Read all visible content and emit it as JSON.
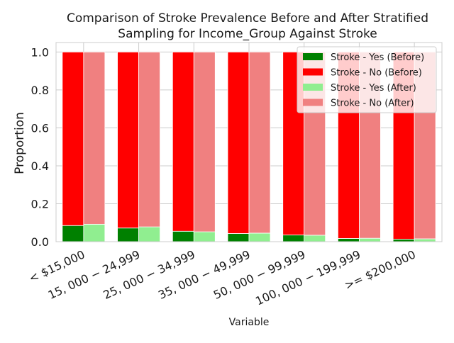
{
  "chart_data": {
    "type": "bar",
    "stacked": true,
    "title_line1": "Comparison of Stroke Prevalence Before and After Stratified",
    "title_line2": "Sampling for Income_Group Against Stroke",
    "xlabel": "Variable",
    "ylabel": "Proportion",
    "ylim": [
      0,
      1.05
    ],
    "yticks": [
      "0.0",
      "0.2",
      "0.4",
      "0.6",
      "0.8",
      "1.0"
    ],
    "ytick_values": [
      0,
      0.2,
      0.4,
      0.6,
      0.8,
      1.0
    ],
    "grid": true,
    "legend_position": "top-right",
    "categories": [
      "< $15,000",
      "15, 000 − 24,999",
      "25, 000 − 34,999",
      "35, 000 − 49,999",
      "50, 000 − 99,999",
      "100, 000 − 199,999",
      ">= $200,000"
    ],
    "series": [
      {
        "name": "Stroke - Yes (Before)",
        "color": "#008000",
        "group": "before",
        "values": [
          0.085,
          0.072,
          0.055,
          0.043,
          0.035,
          0.017,
          0.013
        ]
      },
      {
        "name": "Stroke - No (Before)",
        "color": "#ff0000",
        "group": "before",
        "values": [
          0.915,
          0.928,
          0.945,
          0.957,
          0.965,
          0.983,
          0.987
        ]
      },
      {
        "name": "Stroke - Yes (After)",
        "color": "#90ee90",
        "group": "after",
        "values": [
          0.092,
          0.078,
          0.052,
          0.045,
          0.034,
          0.018,
          0.015
        ]
      },
      {
        "name": "Stroke - No (After)",
        "color": "#f08080",
        "group": "after",
        "values": [
          0.908,
          0.922,
          0.948,
          0.955,
          0.966,
          0.982,
          0.985
        ]
      }
    ]
  }
}
